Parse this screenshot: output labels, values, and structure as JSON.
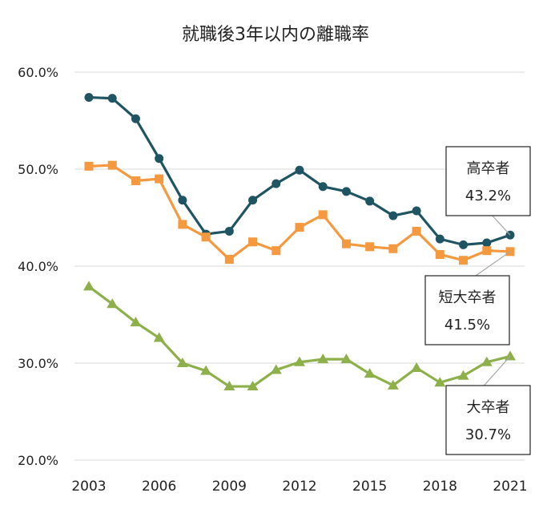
{
  "chart_data": {
    "type": "line",
    "title": "就職後3年以内の離職率",
    "xlabel": "",
    "ylabel": "",
    "ylim": [
      20,
      60
    ],
    "y_ticks": [
      "20.0%",
      "30.0%",
      "40.0%",
      "50.0%",
      "60.0%"
    ],
    "y_tick_values": [
      20,
      30,
      40,
      50,
      60
    ],
    "x_ticks": [
      "2003",
      "2006",
      "2009",
      "2012",
      "2015",
      "2018",
      "2021"
    ],
    "x_tick_values": [
      2003,
      2006,
      2009,
      2012,
      2015,
      2018,
      2021
    ],
    "x": [
      2003,
      2004,
      2005,
      2006,
      2007,
      2008,
      2009,
      2010,
      2011,
      2012,
      2013,
      2014,
      2015,
      2016,
      2017,
      2018,
      2019,
      2020,
      2021
    ],
    "grid": true,
    "series": [
      {
        "name": "高卒者",
        "callout_value": "43.2%",
        "color": "#1f5462",
        "marker": "circle",
        "values": [
          57.4,
          57.3,
          55.2,
          51.1,
          46.8,
          43.3,
          43.6,
          46.8,
          48.5,
          49.9,
          48.2,
          47.7,
          46.7,
          45.2,
          45.7,
          42.8,
          42.2,
          42.4,
          43.2
        ]
      },
      {
        "name": "短大卒者",
        "callout_value": "41.5%",
        "color": "#f4993f",
        "marker": "square",
        "values": [
          50.3,
          50.4,
          48.8,
          49.0,
          44.3,
          43.0,
          40.7,
          42.5,
          41.6,
          44.0,
          45.3,
          42.3,
          42.0,
          41.8,
          43.6,
          41.2,
          40.6,
          41.6,
          41.5
        ]
      },
      {
        "name": "大卒者",
        "callout_value": "30.7%",
        "color": "#8db04b",
        "marker": "triangle",
        "values": [
          37.9,
          36.1,
          34.2,
          32.6,
          30.0,
          29.2,
          27.6,
          27.6,
          29.3,
          30.1,
          30.4,
          30.4,
          28.9,
          27.7,
          29.5,
          28.0,
          28.7,
          30.1,
          30.7
        ]
      }
    ]
  }
}
